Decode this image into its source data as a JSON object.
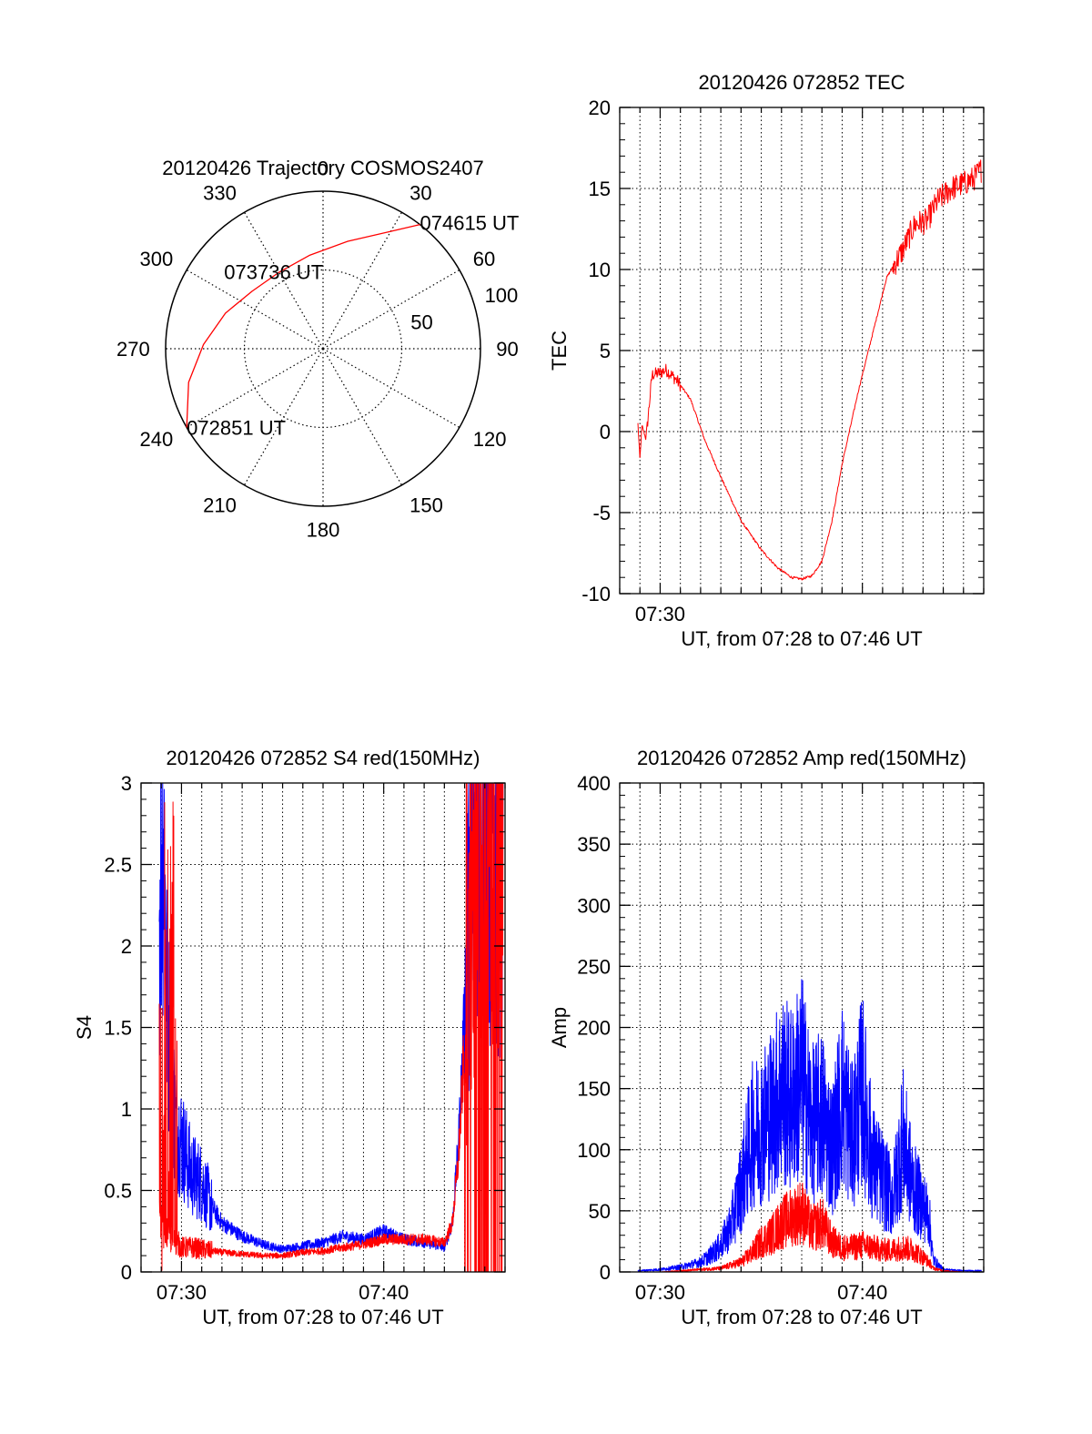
{
  "colors": {
    "red": "#ff0000",
    "blue": "#0000ff",
    "axis": "#000000",
    "grid": "#000000"
  },
  "chart_data": [
    {
      "type": "polar",
      "title": "20120426 Trajectory COSMOS2407",
      "azimuth_labels": [
        "0",
        "30",
        "60",
        "90",
        "120",
        "150",
        "180",
        "210",
        "240",
        "270",
        "300",
        "330"
      ],
      "radial_tick_labels": [
        "50",
        "100"
      ],
      "radial_ticks": [
        50,
        100
      ],
      "series": [
        {
          "color": "red",
          "points": [
            {
              "az": 240,
              "r": 100
            },
            {
              "az": 256,
              "r": 88
            },
            {
              "az": 272,
              "r": 76
            },
            {
              "az": 290,
              "r": 66
            },
            {
              "az": 309,
              "r": 58
            },
            {
              "az": 330,
              "r": 56
            },
            {
              "az": 352,
              "r": 60
            },
            {
              "az": 13,
              "r": 70
            },
            {
              "az": 30,
              "r": 86
            },
            {
              "az": 38,
              "r": 100
            }
          ]
        }
      ],
      "annotations": [
        {
          "text": "074615 UT",
          "az": 38,
          "r": 100
        },
        {
          "text": "073736 UT",
          "az": 327,
          "r": 57
        },
        {
          "text": "072851 UT",
          "az": 240,
          "r": 100
        }
      ]
    },
    {
      "type": "line",
      "title": "20120426 072852 TEC",
      "ylabel": "TEC",
      "xlabel": "UT, from 07:28 to 07:46 UT",
      "xlim": [
        28,
        46
      ],
      "ylim": [
        -10,
        20
      ],
      "yticks": [
        -10,
        -5,
        0,
        5,
        10,
        15,
        20
      ],
      "xtick_labels": [
        {
          "value": 30,
          "label": "07:30"
        }
      ],
      "series": [
        {
          "color": "red",
          "x": [
            28.9,
            29.0,
            29.1,
            29.3,
            29.6,
            29.9,
            30.3,
            30.8,
            31.5,
            32.2,
            33.0,
            34.0,
            35.0,
            35.8,
            36.5,
            37.0,
            37.5,
            38.0,
            38.5,
            39.0,
            39.8,
            40.5,
            41.2,
            42.0,
            42.6,
            43.2,
            43.7,
            44.4,
            45.0,
            45.5,
            45.9
          ],
          "y": [
            0.5,
            -1.7,
            0.4,
            -0.5,
            3.5,
            3.6,
            3.8,
            3.2,
            2.0,
            -0.5,
            -2.8,
            -5.5,
            -7.3,
            -8.4,
            -9.0,
            -9.1,
            -8.9,
            -8.0,
            -5.5,
            -2.0,
            2.5,
            6.0,
            9.5,
            11.2,
            12.8,
            13.0,
            14.2,
            15.0,
            15.3,
            15.6,
            16.2
          ]
        }
      ]
    },
    {
      "type": "line",
      "title": "20120426 072852 S4 red(150MHz)",
      "ylabel": "S4",
      "xlabel": "UT, from 07:28 to 07:46 UT",
      "xlim": [
        28,
        46
      ],
      "ylim": [
        0,
        3
      ],
      "yticks": [
        0,
        0.5,
        1,
        1.5,
        2,
        2.5,
        3
      ],
      "xtick_labels": [
        {
          "value": 30,
          "label": "07:30"
        },
        {
          "value": 40,
          "label": "07:40"
        }
      ],
      "series": [
        {
          "color": "blue",
          "x": [
            28.9,
            29.1,
            29.3,
            29.5,
            29.7,
            30.0,
            30.5,
            31.0,
            31.5,
            32.0,
            33.0,
            34.0,
            35.0,
            36.0,
            37.0,
            38.0,
            39.0,
            40.0,
            41.0,
            42.0,
            43.0,
            43.4,
            43.7,
            44.0,
            44.2,
            44.5,
            45.0,
            45.5,
            45.9
          ],
          "y": [
            2.2,
            2.8,
            1.6,
            1.3,
            0.9,
            0.8,
            0.6,
            0.55,
            0.4,
            0.3,
            0.22,
            0.17,
            0.14,
            0.16,
            0.18,
            0.22,
            0.2,
            0.25,
            0.2,
            0.18,
            0.15,
            0.3,
            0.8,
            1.6,
            2.2,
            2.6,
            2.8,
            2.5,
            2.7
          ]
        },
        {
          "color": "red",
          "x": [
            28.9,
            29.2,
            29.5,
            29.8,
            30.0,
            30.5,
            31.0,
            32.0,
            33.0,
            34.0,
            35.0,
            36.0,
            37.0,
            38.0,
            39.0,
            40.0,
            41.0,
            42.0,
            43.0,
            43.4,
            43.7,
            44.0,
            44.3,
            44.6,
            45.0,
            45.5,
            45.9
          ],
          "y": [
            0.3,
            0.25,
            0.2,
            0.18,
            0.15,
            0.15,
            0.14,
            0.12,
            0.11,
            0.1,
            0.1,
            0.12,
            0.13,
            0.15,
            0.17,
            0.2,
            0.2,
            0.2,
            0.18,
            0.3,
            0.7,
            1.4,
            1.9,
            2.2,
            2.4,
            2.6,
            2.8
          ]
        }
      ]
    },
    {
      "type": "line",
      "title": "20120426 072852 Amp red(150MHz)",
      "ylabel": "Amp",
      "xlabel": "UT, from 07:28 to 07:46 UT",
      "xlim": [
        28,
        46
      ],
      "ylim": [
        0,
        400
      ],
      "yticks": [
        0,
        50,
        100,
        150,
        200,
        250,
        300,
        350,
        400
      ],
      "xtick_labels": [
        {
          "value": 30,
          "label": "07:30"
        },
        {
          "value": 40,
          "label": "07:40"
        }
      ],
      "series": [
        {
          "color": "blue",
          "x": [
            28.9,
            30.0,
            31.0,
            32.0,
            32.5,
            33.0,
            33.5,
            34.0,
            34.5,
            35.0,
            35.5,
            36.0,
            36.5,
            37.0,
            37.5,
            38.0,
            38.5,
            39.0,
            39.5,
            40.0,
            40.5,
            41.0,
            41.5,
            42.0,
            42.5,
            43.0,
            43.3,
            43.5,
            44.0,
            45.0,
            45.9
          ],
          "y": [
            1,
            2,
            4,
            8,
            14,
            22,
            38,
            70,
            110,
            120,
            130,
            150,
            140,
            160,
            120,
            130,
            100,
            145,
            110,
            150,
            90,
            75,
            60,
            110,
            70,
            55,
            45,
            10,
            2,
            1,
            1
          ]
        },
        {
          "color": "red",
          "x": [
            28.9,
            30.0,
            31.0,
            32.0,
            33.0,
            34.0,
            34.5,
            35.0,
            35.5,
            36.0,
            36.5,
            37.0,
            37.5,
            38.0,
            38.5,
            39.0,
            39.5,
            40.0,
            40.5,
            41.0,
            41.5,
            42.0,
            42.5,
            43.0,
            43.3,
            43.5,
            44.0,
            45.0,
            45.9
          ],
          "y": [
            0,
            0,
            1,
            2,
            3,
            8,
            15,
            25,
            30,
            40,
            45,
            50,
            35,
            40,
            25,
            20,
            20,
            22,
            20,
            18,
            18,
            20,
            18,
            12,
            8,
            3,
            1,
            0,
            0
          ]
        }
      ]
    }
  ]
}
